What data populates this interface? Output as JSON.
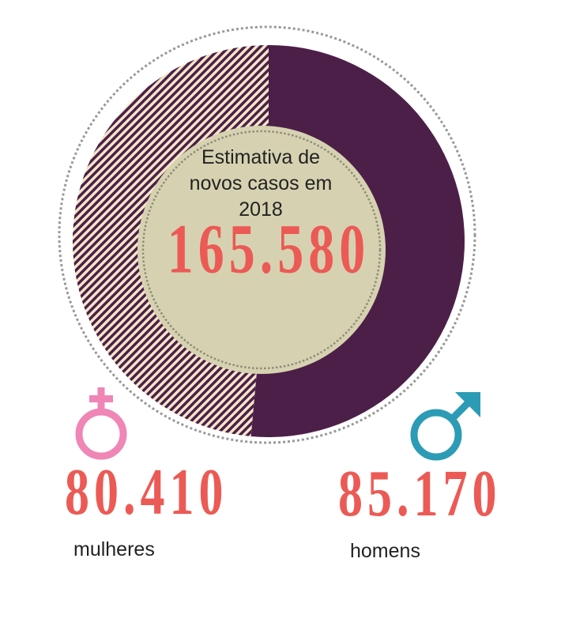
{
  "chart_data": {
    "type": "pie",
    "title": "Estimativa de novos casos em 2018",
    "total": "165.580",
    "total_value": 165580,
    "slices": [
      {
        "label": "mulheres",
        "value": 80410,
        "display": "80.410",
        "color": "#f2e6c8",
        "pattern": "diagonal-stripes",
        "stripe_color": "#4c1f48"
      },
      {
        "label": "homens",
        "value": 85170,
        "display": "85.170",
        "color": "#4c1f48"
      }
    ]
  },
  "colors": {
    "accent_number": "#ec5a55",
    "center_fill": "#d6d2b1",
    "dotted_ring": "#999999",
    "female_symbol": "#ef86b6",
    "male_symbol": "#2c9bb5"
  },
  "icons": {
    "female": "female-symbol-icon",
    "male": "male-symbol-icon"
  }
}
